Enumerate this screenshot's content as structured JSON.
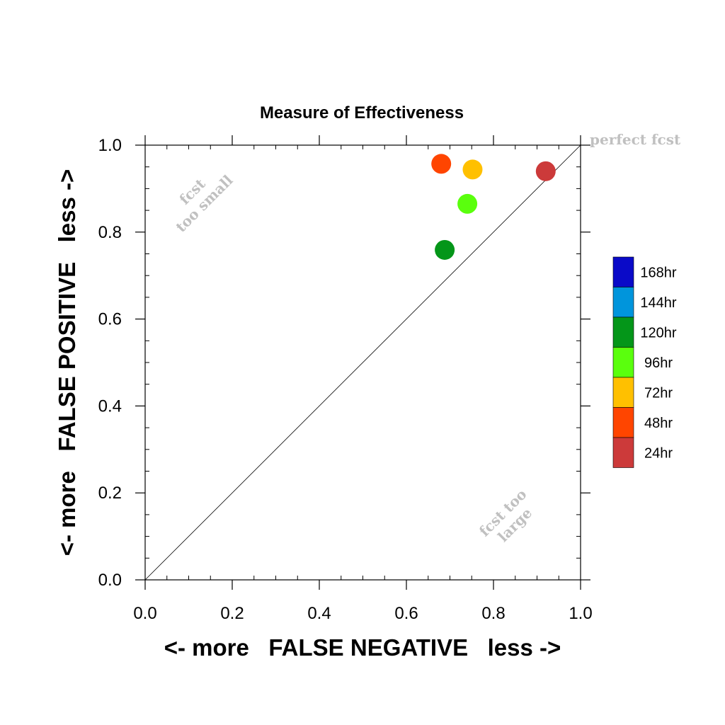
{
  "chart_data": {
    "type": "scatter",
    "title": "Measure of Effectiveness",
    "xlabel": "<- more   FALSE NEGATIVE   less ->",
    "ylabel": "<- more   FALSE POSITIVE   less ->",
    "xlim": [
      0.0,
      1.0
    ],
    "ylim": [
      0.0,
      1.0
    ],
    "xticks": [
      "0.0",
      "0.2",
      "0.4",
      "0.6",
      "0.8",
      "1.0"
    ],
    "yticks": [
      "0.0",
      "0.2",
      "0.4",
      "0.6",
      "0.8",
      "1.0"
    ],
    "grid": false,
    "legend_position": "right",
    "reference_line": {
      "from": [
        0.0,
        0.0
      ],
      "to": [
        1.0,
        1.0
      ]
    },
    "annotations": {
      "perfect": "perfect fcst",
      "too_small_line1": "fcst",
      "too_small_line2": "too small",
      "too_large_line1": "fcst too",
      "too_large_line2": "large"
    },
    "legend": [
      {
        "label": "168hr",
        "color": "#0a0ac8"
      },
      {
        "label": "144hr",
        "color": "#0095dc"
      },
      {
        "label": "120hr",
        "color": "#049619"
      },
      {
        "label": "96hr",
        "color": "#5aff0d"
      },
      {
        "label": "72hr",
        "color": "#ffc000"
      },
      {
        "label": "48hr",
        "color": "#ff4500"
      },
      {
        "label": "24hr",
        "color": "#cc3a3a"
      }
    ],
    "points": [
      {
        "series": "24hr",
        "x": 0.92,
        "y": 0.94,
        "color": "#cc3a3a"
      },
      {
        "series": "48hr",
        "x": 0.68,
        "y": 0.957,
        "color": "#ff4500"
      },
      {
        "series": "72hr",
        "x": 0.752,
        "y": 0.944,
        "color": "#ffc000"
      },
      {
        "series": "96hr",
        "x": 0.74,
        "y": 0.865,
        "color": "#5aff0d"
      },
      {
        "series": "120hr",
        "x": 0.688,
        "y": 0.759,
        "color": "#049619"
      }
    ]
  }
}
